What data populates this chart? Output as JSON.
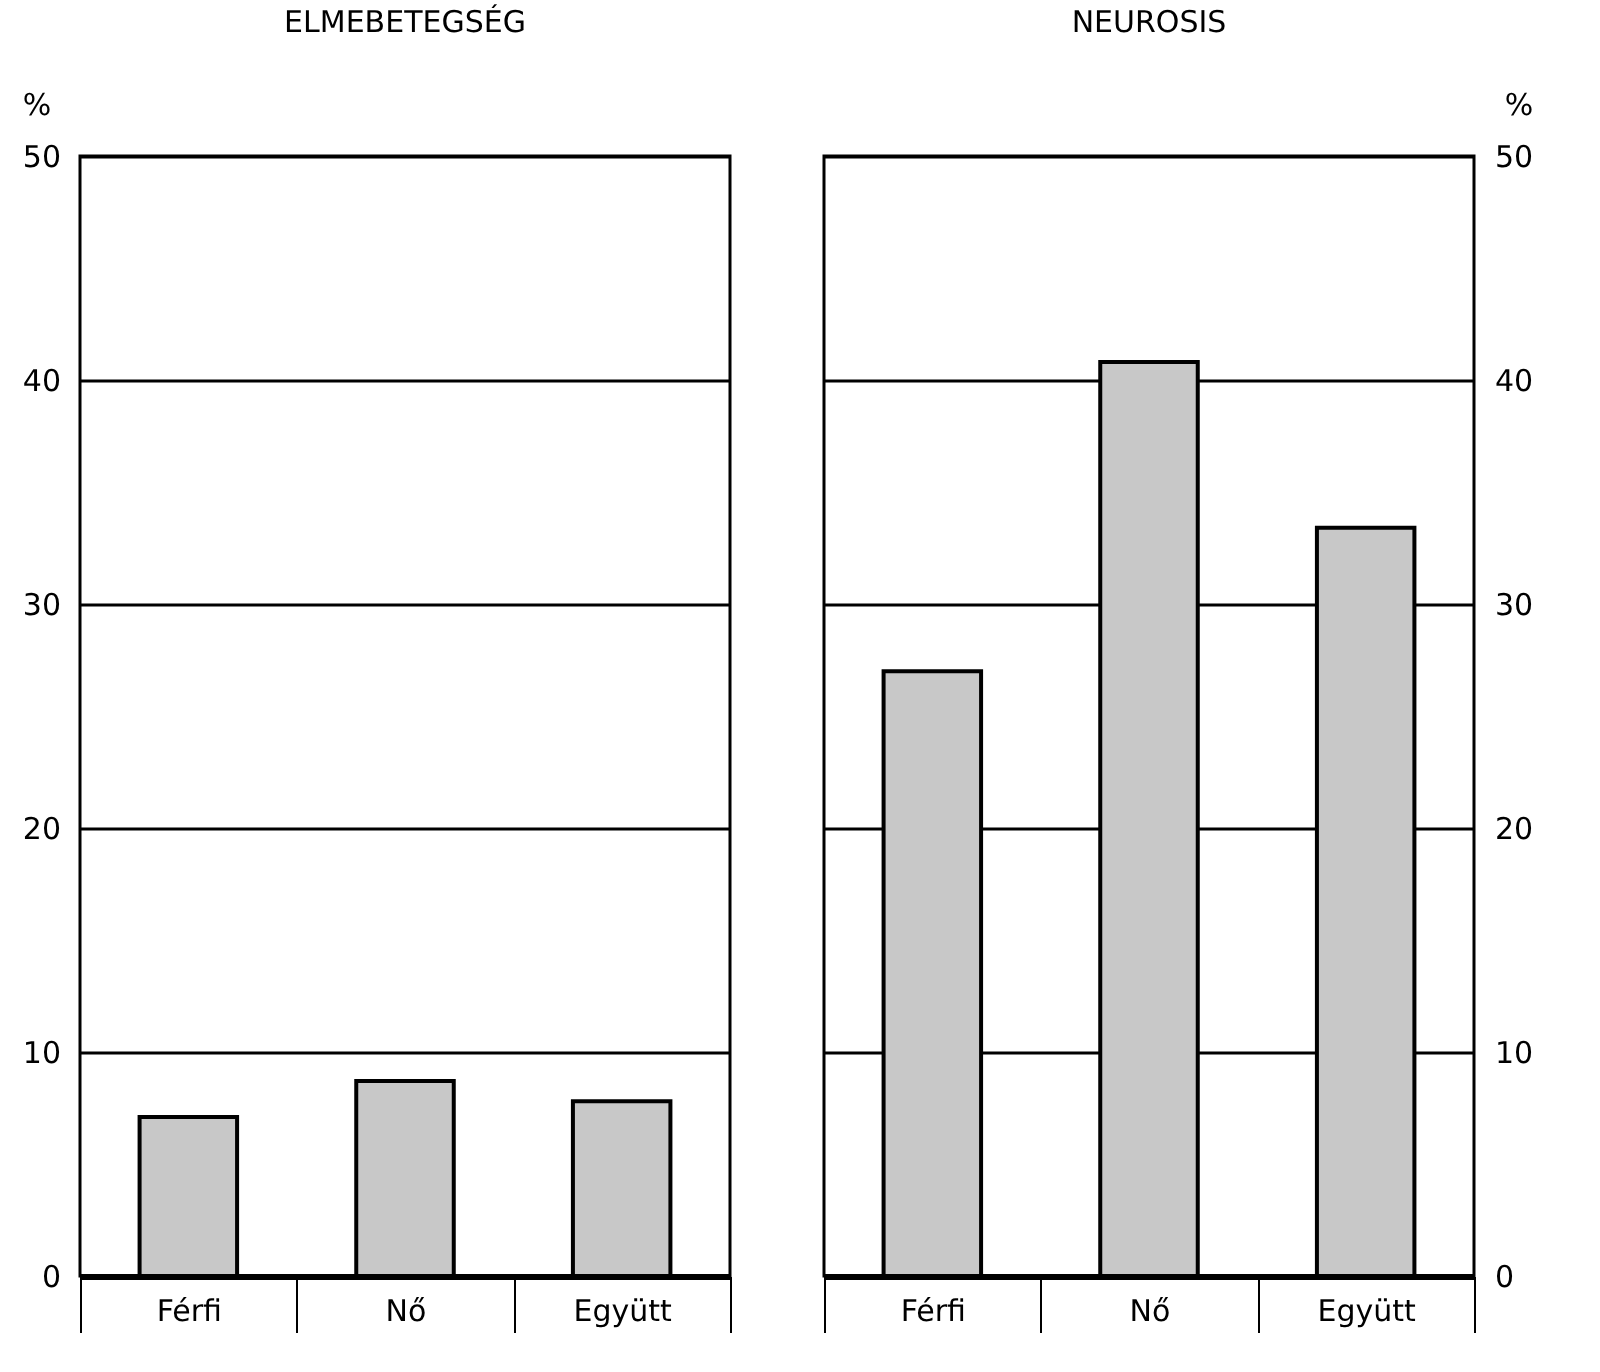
{
  "chart_data": [
    {
      "type": "bar",
      "title": "ELMEBETEGSÉG",
      "ylabel": "%",
      "categories": [
        "Férfi",
        "Nő",
        "Együtt"
      ],
      "series": [
        {
          "color": "#c8c8c8",
          "values": [
            7.1,
            8.7,
            7.8
          ]
        }
      ],
      "ylim": [
        0,
        50
      ],
      "yticks": [
        0,
        10,
        20,
        30,
        40,
        50
      ],
      "grid": "y"
    },
    {
      "type": "bar",
      "title": "NEUROSIS",
      "y2label": "%",
      "categories": [
        "Férfi",
        "Nő",
        "Együtt"
      ],
      "series": [
        {
          "color": "#c8c8c8",
          "values": [
            27,
            40.8,
            33.4
          ],
          "axis": "y2"
        }
      ],
      "y2lim": [
        0,
        50
      ],
      "y2ticks": [
        0,
        10,
        20,
        30,
        40,
        50
      ],
      "grid": "y"
    }
  ]
}
